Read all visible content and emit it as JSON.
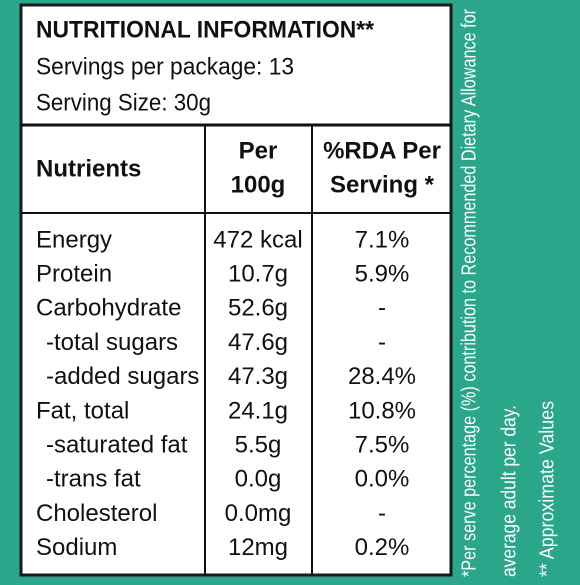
{
  "header": {
    "title": "NUTRITIONAL INFORMATION**",
    "servings": "Servings per package: 13",
    "serving_size": "Serving Size: 30g"
  },
  "table": {
    "columns": [
      [
        "Nutrients"
      ],
      [
        "Per",
        "100g"
      ],
      [
        "%RDA Per",
        "Serving *"
      ]
    ],
    "rows": [
      [
        "Energy",
        "472 kcal",
        "7.1%"
      ],
      [
        "Protein",
        "10.7g",
        "5.9%"
      ],
      [
        "Carbohydrate",
        "52.6g",
        "-"
      ],
      [
        "-total sugars",
        "47.6g",
        "-"
      ],
      [
        "-added sugars",
        "47.3g",
        "28.4%"
      ],
      [
        "Fat, total",
        "24.1g",
        "10.8%"
      ],
      [
        "-saturated fat",
        "5.5g",
        "7.5%"
      ],
      [
        "-trans fat",
        "0.0g",
        "0.0%"
      ],
      [
        "Cholesterol",
        "0.0mg",
        "-"
      ],
      [
        "Sodium",
        "12mg",
        "0.2%"
      ]
    ]
  },
  "footnotes": [
    "*Per serve percentage (%) contribution to Recommended  Dietary Allowance for",
    "average adult per day.",
    "** Approximate Values"
  ]
}
